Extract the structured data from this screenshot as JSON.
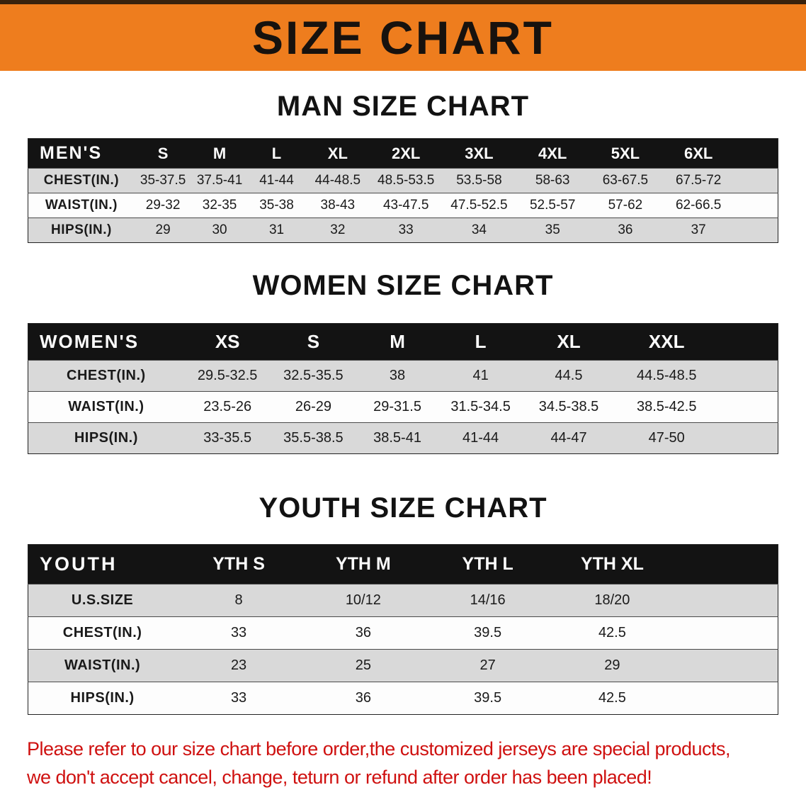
{
  "banner": {
    "title": "SIZE CHART"
  },
  "sections": [
    {
      "heading": "MAN SIZE CHART",
      "table": {
        "header": [
          "MEN'S",
          "S",
          "M",
          "L",
          "XL",
          "2XL",
          "3XL",
          "4XL",
          "5XL",
          "6XL"
        ],
        "rows": [
          [
            "CHEST(IN.)",
            "35-37.5",
            "37.5-41",
            "41-44",
            "44-48.5",
            "48.5-53.5",
            "53.5-58",
            "58-63",
            "63-67.5",
            "67.5-72"
          ],
          [
            "WAIST(IN.)",
            "29-32",
            "32-35",
            "35-38",
            "38-43",
            "43-47.5",
            "47.5-52.5",
            "52.5-57",
            "57-62",
            "62-66.5"
          ],
          [
            "HIPS(IN.)",
            "29",
            "30",
            "31",
            "32",
            "33",
            "34",
            "35",
            "36",
            "37"
          ]
        ]
      }
    },
    {
      "heading": "WOMEN SIZE CHART",
      "table": {
        "header": [
          "WOMEN'S",
          "XS",
          "S",
          "M",
          "L",
          "XL",
          "XXL"
        ],
        "rows": [
          [
            "CHEST(IN.)",
            "29.5-32.5",
            "32.5-35.5",
            "38",
            "41",
            "44.5",
            "44.5-48.5"
          ],
          [
            "WAIST(IN.)",
            "23.5-26",
            "26-29",
            "29-31.5",
            "31.5-34.5",
            "34.5-38.5",
            "38.5-42.5"
          ],
          [
            "HIPS(IN.)",
            "33-35.5",
            "35.5-38.5",
            "38.5-41",
            "41-44",
            "44-47",
            "47-50"
          ]
        ]
      }
    },
    {
      "heading": "YOUTH SIZE CHART",
      "table": {
        "header": [
          "YOUTH",
          "YTH S",
          "YTH M",
          "YTH L",
          "YTH XL"
        ],
        "rows": [
          [
            "U.S.SIZE",
            "8",
            "10/12",
            "14/16",
            "18/20"
          ],
          [
            "CHEST(IN.)",
            "33",
            "36",
            "39.5",
            "42.5"
          ],
          [
            "WAIST(IN.)",
            "23",
            "25",
            "27",
            "29"
          ],
          [
            "HIPS(IN.)",
            "33",
            "36",
            "39.5",
            "42.5"
          ]
        ]
      }
    }
  ],
  "disclaimer": {
    "lines": [
      "Please refer to our size chart before order,the customized jerseys are special products,",
      "we don't accept cancel, change, teturn or refund after order has been placed!"
    ]
  },
  "colors": {
    "banner_orange": "#ee7d1e",
    "header_black": "#131313",
    "row_gray": "#d9d9d9",
    "disclaimer_red": "#cf1110"
  }
}
